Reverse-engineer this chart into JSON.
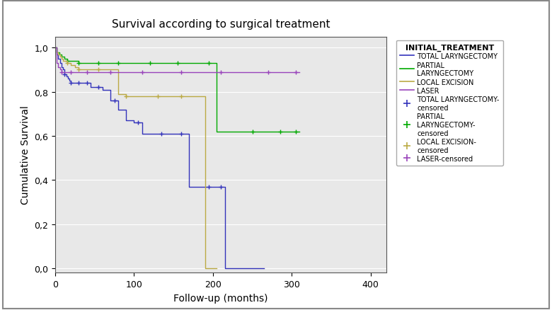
{
  "title": "Survival according to surgical treatment",
  "xlabel": "Follow-up (months)",
  "ylabel": "Cumulative Survival",
  "legend_title": "INITIAL_TREATMENT",
  "xlim": [
    0,
    420
  ],
  "ylim": [
    -0.02,
    1.05
  ],
  "xticks": [
    0,
    100,
    200,
    300,
    400
  ],
  "yticks": [
    0.0,
    0.2,
    0.4,
    0.6,
    0.8,
    1.0
  ],
  "ytick_labels": [
    "0,0",
    "0,2",
    "0,4",
    "0,6",
    "0,8",
    "1,0"
  ],
  "fig_facecolor": "#ffffff",
  "plot_bg_color": "#e8e8e8",
  "total_laryngectomy": {
    "color": "#3333bb",
    "steps_x": [
      0,
      2,
      4,
      6,
      8,
      10,
      12,
      14,
      16,
      18,
      20,
      25,
      30,
      35,
      40,
      45,
      50,
      55,
      60,
      70,
      80,
      90,
      100,
      110,
      120,
      130,
      140,
      150,
      160,
      165,
      170,
      180,
      185,
      190,
      200,
      205,
      215,
      220,
      230,
      265
    ],
    "steps_y": [
      1.0,
      0.97,
      0.95,
      0.93,
      0.91,
      0.9,
      0.88,
      0.87,
      0.86,
      0.85,
      0.84,
      0.84,
      0.84,
      0.84,
      0.84,
      0.82,
      0.82,
      0.82,
      0.81,
      0.76,
      0.72,
      0.67,
      0.66,
      0.61,
      0.61,
      0.61,
      0.61,
      0.61,
      0.61,
      0.61,
      0.37,
      0.37,
      0.37,
      0.37,
      0.37,
      0.37,
      0.0,
      0.0,
      0.0,
      0.0
    ],
    "censored_x": [
      12,
      20,
      30,
      40,
      55,
      75,
      105,
      135,
      160,
      195,
      210
    ],
    "censored_y": [
      0.88,
      0.84,
      0.84,
      0.84,
      0.82,
      0.76,
      0.66,
      0.61,
      0.61,
      0.37,
      0.37
    ]
  },
  "partial_laryngectomy": {
    "color": "#00aa00",
    "steps_x": [
      0,
      2,
      5,
      8,
      12,
      15,
      20,
      30,
      40,
      50,
      60,
      80,
      100,
      120,
      150,
      180,
      200,
      205,
      215,
      310
    ],
    "steps_y": [
      1.0,
      0.98,
      0.97,
      0.96,
      0.95,
      0.94,
      0.94,
      0.93,
      0.93,
      0.93,
      0.93,
      0.93,
      0.93,
      0.93,
      0.93,
      0.93,
      0.93,
      0.62,
      0.62,
      0.62
    ],
    "censored_x": [
      15,
      30,
      55,
      80,
      120,
      155,
      195,
      250,
      285,
      305
    ],
    "censored_y": [
      0.94,
      0.93,
      0.93,
      0.93,
      0.93,
      0.93,
      0.93,
      0.62,
      0.62,
      0.62
    ]
  },
  "local_excision": {
    "color": "#bbaa44",
    "steps_x": [
      0,
      2,
      4,
      6,
      8,
      10,
      15,
      20,
      25,
      30,
      40,
      50,
      60,
      70,
      80,
      90,
      100,
      120,
      140,
      160,
      185,
      190,
      205
    ],
    "steps_y": [
      1.0,
      0.98,
      0.97,
      0.96,
      0.95,
      0.94,
      0.93,
      0.92,
      0.91,
      0.9,
      0.9,
      0.9,
      0.9,
      0.9,
      0.79,
      0.78,
      0.78,
      0.78,
      0.78,
      0.78,
      0.78,
      0.0,
      0.0
    ],
    "censored_x": [
      15,
      30,
      55,
      90,
      130,
      160
    ],
    "censored_y": [
      0.93,
      0.9,
      0.9,
      0.78,
      0.78,
      0.78
    ]
  },
  "laser": {
    "color": "#9944bb",
    "steps_x": [
      0,
      2,
      4,
      6,
      8,
      10,
      15,
      20,
      30,
      50,
      100,
      150,
      200,
      310
    ],
    "steps_y": [
      1.0,
      0.93,
      0.91,
      0.9,
      0.89,
      0.89,
      0.89,
      0.89,
      0.89,
      0.89,
      0.89,
      0.89,
      0.89,
      0.89
    ],
    "censored_x": [
      8,
      20,
      40,
      70,
      110,
      160,
      210,
      270,
      305
    ],
    "censored_y": [
      0.89,
      0.89,
      0.89,
      0.89,
      0.89,
      0.89,
      0.89,
      0.89,
      0.89
    ]
  }
}
